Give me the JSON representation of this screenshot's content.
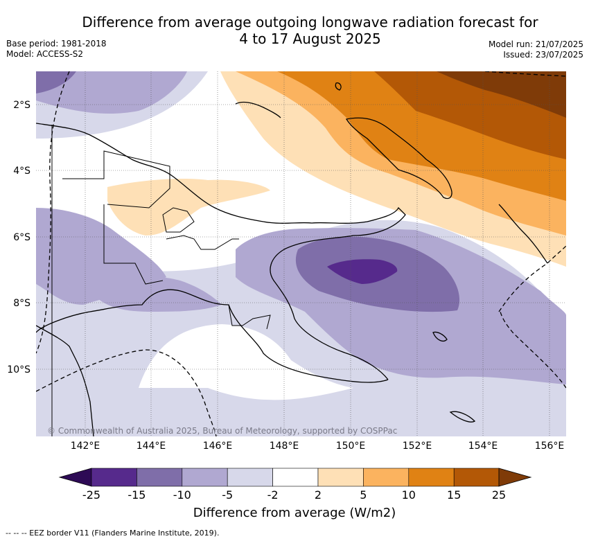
{
  "header": {
    "title_line1": "Difference from average outgoing longwave radiation forecast for",
    "title_line2": "4 to 17 August 2025",
    "base_period": "Base period: 1981-2018",
    "model": "Model: ACCESS-S2",
    "model_run": "Model run: 21/07/2025",
    "issued": "Issued: 23/07/2025"
  },
  "map": {
    "lat_labels": [
      "2°S",
      "4°S",
      "6°S",
      "8°S",
      "10°S"
    ],
    "lon_labels": [
      "142°E",
      "144°E",
      "146°E",
      "148°E",
      "150°E",
      "152°E",
      "154°E",
      "156°E"
    ],
    "copyright": "© Commonwealth of Australia 2025, Bureau of Meteorology, supported by COSPPac"
  },
  "colorbar": {
    "ticks": [
      "-25",
      "-15",
      "-10",
      "-5",
      "-2",
      "2",
      "5",
      "10",
      "15",
      "25"
    ],
    "colors": [
      "#2d0a55",
      "#562a8c",
      "#7f6ea9",
      "#b0a8d1",
      "#d7d8ea",
      "#ffffff",
      "#fee0b6",
      "#fbb35f",
      "#e08214",
      "#b35806",
      "#7f3b08"
    ],
    "title": "Difference from average (W/m2)"
  },
  "footnote": "--  --  -- EEZ border V11 (Flanders Marine Institute, 2019)."
}
